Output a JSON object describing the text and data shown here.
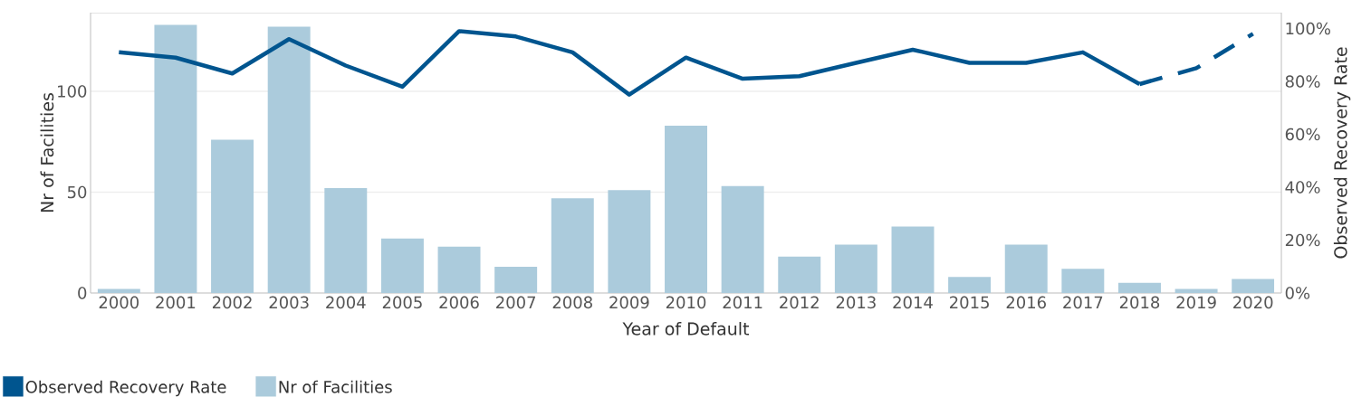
{
  "chart_data": {
    "type": "bar",
    "categories": [
      "2000",
      "2001",
      "2002",
      "2003",
      "2004",
      "2005",
      "2006",
      "2007",
      "2008",
      "2009",
      "2010",
      "2011",
      "2012",
      "2013",
      "2014",
      "2015",
      "2016",
      "2017",
      "2018",
      "2019",
      "2020"
    ],
    "xlabel": "Year of Default",
    "ylabel": "Nr of Facilities",
    "y2label": "Observed Recovery Rate",
    "ylim": [
      0,
      139
    ],
    "yticks": [
      0,
      50,
      100
    ],
    "y2lim": [
      0,
      106
    ],
    "y2ticks": [
      {
        "value": 0,
        "label": "0%"
      },
      {
        "value": 20,
        "label": "20%"
      },
      {
        "value": 40,
        "label": "40%"
      },
      {
        "value": 60,
        "label": "60%"
      },
      {
        "value": 80,
        "label": "80%"
      },
      {
        "value": 100,
        "label": "100%"
      }
    ],
    "grid": "y",
    "legend": "bottom left",
    "series": [
      {
        "name": "Observed Recovery Rate",
        "type": "line",
        "axis": "y2",
        "color": "#00558f",
        "line_style": "solid",
        "values": [
          91,
          89,
          83,
          96,
          86,
          78,
          99,
          97,
          91,
          75,
          89,
          81,
          82,
          87,
          92,
          87,
          87,
          91,
          79,
          null,
          null
        ]
      },
      {
        "name": "Nr of Facilities",
        "color": "#abcbdc",
        "values": [
          2,
          133,
          76,
          132,
          52,
          27,
          23,
          13,
          47,
          51,
          83,
          53,
          18,
          24,
          33,
          8,
          24,
          12,
          5,
          2,
          7
        ]
      },
      {
        "type": "line",
        "axis": "y2",
        "color": "#00558f",
        "line_style": "dashed",
        "values": [
          null,
          null,
          null,
          null,
          null,
          null,
          null,
          null,
          null,
          null,
          null,
          null,
          null,
          null,
          null,
          null,
          null,
          null,
          79,
          85,
          98
        ]
      }
    ]
  }
}
